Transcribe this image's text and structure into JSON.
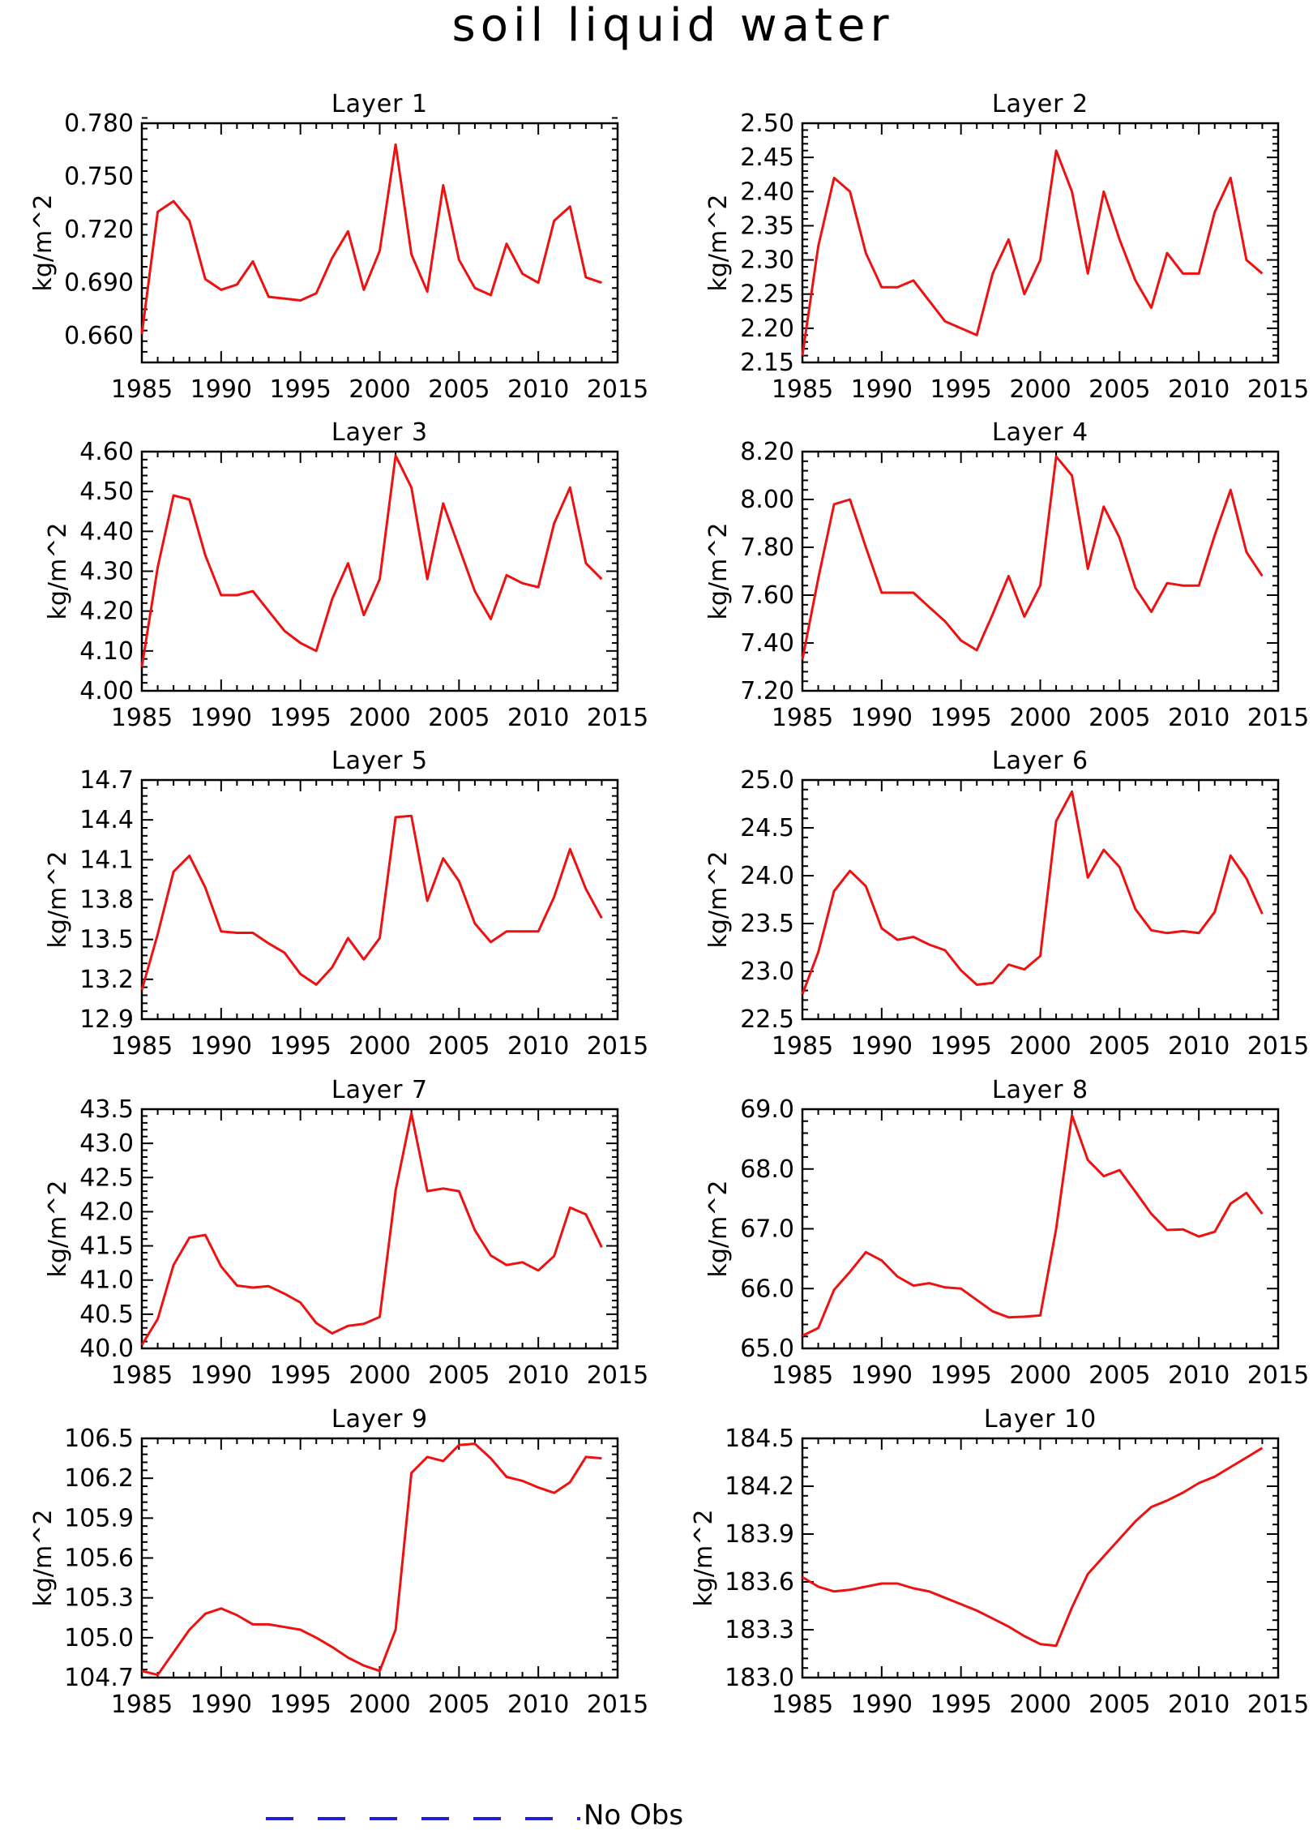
{
  "page": {
    "title": "soil liquid water"
  },
  "legend": {
    "entries": [
      {
        "label": "No Obs",
        "color": "#1f1fd6",
        "style": "dashed"
      }
    ]
  },
  "colors": {
    "series": "#ee1111",
    "axis": "#000000"
  },
  "chart_data": [
    {
      "type": "line",
      "title": "Layer 1",
      "xlabel": "",
      "ylabel": "kg/m^2",
      "xlim": [
        1985,
        2015
      ],
      "ylim": [
        0.645,
        0.78
      ],
      "xticks": [
        "1985",
        "1990",
        "1995",
        "2000",
        "2005",
        "2010",
        "2015"
      ],
      "yticks": [
        "0.660",
        "0.690",
        "0.720",
        "0.750",
        "0.780"
      ],
      "x": [
        1985,
        1986,
        1987,
        1988,
        1989,
        1990,
        1991,
        1992,
        1993,
        1994,
        1995,
        1996,
        1997,
        1998,
        1999,
        2000,
        2001,
        2002,
        2003,
        2004,
        2005,
        2006,
        2007,
        2008,
        2009,
        2010,
        2011,
        2012,
        2013,
        2014
      ],
      "series": [
        {
          "values": [
            0.661,
            0.73,
            0.736,
            0.725,
            0.692,
            0.686,
            0.689,
            0.702,
            0.682,
            0.681,
            0.68,
            0.684,
            0.704,
            0.719,
            0.686,
            0.708,
            0.768,
            0.706,
            0.685,
            0.745,
            0.703,
            0.687,
            0.683,
            0.712,
            0.695,
            0.69,
            0.725,
            0.733,
            0.693,
            0.69
          ]
        }
      ]
    },
    {
      "type": "line",
      "title": "Layer 2",
      "xlabel": "",
      "ylabel": "kg/m^2",
      "xlim": [
        1985,
        2015
      ],
      "ylim": [
        2.15,
        2.5
      ],
      "xticks": [
        "1985",
        "1990",
        "1995",
        "2000",
        "2005",
        "2010",
        "2015"
      ],
      "yticks": [
        "2.15",
        "2.20",
        "2.25",
        "2.30",
        "2.35",
        "2.40",
        "2.45",
        "2.50"
      ],
      "x": [
        1985,
        1986,
        1987,
        1988,
        1989,
        1990,
        1991,
        1992,
        1993,
        1994,
        1995,
        1996,
        1997,
        1998,
        1999,
        2000,
        2001,
        2002,
        2003,
        2004,
        2005,
        2006,
        2007,
        2008,
        2009,
        2010,
        2011,
        2012,
        2013,
        2014
      ],
      "series": [
        {
          "values": [
            2.16,
            2.32,
            2.42,
            2.4,
            2.31,
            2.26,
            2.26,
            2.27,
            2.24,
            2.21,
            2.2,
            2.19,
            2.28,
            2.33,
            2.25,
            2.3,
            2.46,
            2.4,
            2.28,
            2.4,
            2.33,
            2.27,
            2.23,
            2.31,
            2.28,
            2.28,
            2.37,
            2.42,
            2.3,
            2.28
          ]
        }
      ]
    },
    {
      "type": "line",
      "title": "Layer 3",
      "xlabel": "",
      "ylabel": "kg/m^2",
      "xlim": [
        1985,
        2015
      ],
      "ylim": [
        4.0,
        4.6
      ],
      "xticks": [
        "1985",
        "1990",
        "1995",
        "2000",
        "2005",
        "2010",
        "2015"
      ],
      "yticks": [
        "4.00",
        "4.10",
        "4.20",
        "4.30",
        "4.40",
        "4.50",
        "4.60"
      ],
      "x": [
        1985,
        1986,
        1987,
        1988,
        1989,
        1990,
        1991,
        1992,
        1993,
        1994,
        1995,
        1996,
        1997,
        1998,
        1999,
        2000,
        2001,
        2002,
        2003,
        2004,
        2005,
        2006,
        2007,
        2008,
        2009,
        2010,
        2011,
        2012,
        2013,
        2014
      ],
      "series": [
        {
          "values": [
            4.06,
            4.31,
            4.49,
            4.48,
            4.34,
            4.24,
            4.24,
            4.25,
            4.2,
            4.15,
            4.12,
            4.1,
            4.23,
            4.32,
            4.19,
            4.28,
            4.59,
            4.51,
            4.28,
            4.47,
            4.36,
            4.25,
            4.18,
            4.29,
            4.27,
            4.26,
            4.42,
            4.51,
            4.32,
            4.28
          ]
        }
      ]
    },
    {
      "type": "line",
      "title": "Layer 4",
      "xlabel": "",
      "ylabel": "kg/m^2",
      "xlim": [
        1985,
        2015
      ],
      "ylim": [
        7.2,
        8.2
      ],
      "xticks": [
        "1985",
        "1990",
        "1995",
        "2000",
        "2005",
        "2010",
        "2015"
      ],
      "yticks": [
        "7.20",
        "7.40",
        "7.60",
        "7.80",
        "8.00",
        "8.20"
      ],
      "x": [
        1985,
        1986,
        1987,
        1988,
        1989,
        1990,
        1991,
        1992,
        1993,
        1994,
        1995,
        1996,
        1997,
        1998,
        1999,
        2000,
        2001,
        2002,
        2003,
        2004,
        2005,
        2006,
        2007,
        2008,
        2009,
        2010,
        2011,
        2012,
        2013,
        2014
      ],
      "series": [
        {
          "values": [
            7.33,
            7.67,
            7.98,
            8.0,
            7.8,
            7.61,
            7.61,
            7.61,
            7.55,
            7.49,
            7.41,
            7.37,
            7.52,
            7.68,
            7.51,
            7.64,
            8.18,
            8.1,
            7.71,
            7.97,
            7.84,
            7.63,
            7.53,
            7.65,
            7.64,
            7.64,
            7.85,
            8.04,
            7.78,
            7.68
          ]
        }
      ]
    },
    {
      "type": "line",
      "title": "Layer 5",
      "xlabel": "",
      "ylabel": "kg/m^2",
      "xlim": [
        1985,
        2015
      ],
      "ylim": [
        12.9,
        14.7
      ],
      "xticks": [
        "1985",
        "1990",
        "1995",
        "2000",
        "2005",
        "2010",
        "2015"
      ],
      "yticks": [
        "12.9",
        "13.2",
        "13.5",
        "13.8",
        "14.1",
        "14.4",
        "14.7"
      ],
      "x": [
        1985,
        1986,
        1987,
        1988,
        1989,
        1990,
        1991,
        1992,
        1993,
        1994,
        1995,
        1996,
        1997,
        1998,
        1999,
        2000,
        2001,
        2002,
        2003,
        2004,
        2005,
        2006,
        2007,
        2008,
        2009,
        2010,
        2011,
        2012,
        2013,
        2014
      ],
      "series": [
        {
          "values": [
            13.12,
            13.54,
            14.01,
            14.13,
            13.89,
            13.56,
            13.55,
            13.55,
            13.47,
            13.4,
            13.24,
            13.16,
            13.29,
            13.51,
            13.35,
            13.51,
            14.42,
            14.43,
            13.79,
            14.11,
            13.94,
            13.62,
            13.48,
            13.56,
            13.56,
            13.56,
            13.82,
            14.18,
            13.88,
            13.66
          ]
        }
      ]
    },
    {
      "type": "line",
      "title": "Layer 6",
      "xlabel": "",
      "ylabel": "kg/m^2",
      "xlim": [
        1985,
        2015
      ],
      "ylim": [
        22.5,
        25.0
      ],
      "xticks": [
        "1985",
        "1990",
        "1995",
        "2000",
        "2005",
        "2010",
        "2015"
      ],
      "yticks": [
        "22.5",
        "23.0",
        "23.5",
        "24.0",
        "24.5",
        "25.0"
      ],
      "x": [
        1985,
        1986,
        1987,
        1988,
        1989,
        1990,
        1991,
        1992,
        1993,
        1994,
        1995,
        1996,
        1997,
        1998,
        1999,
        2000,
        2001,
        2002,
        2003,
        2004,
        2005,
        2006,
        2007,
        2008,
        2009,
        2010,
        2011,
        2012,
        2013,
        2014
      ],
      "series": [
        {
          "values": [
            22.76,
            23.2,
            23.84,
            24.05,
            23.89,
            23.45,
            23.33,
            23.36,
            23.28,
            23.22,
            23.01,
            22.86,
            22.88,
            23.07,
            23.02,
            23.16,
            24.57,
            24.88,
            23.98,
            24.27,
            24.09,
            23.65,
            23.43,
            23.4,
            23.42,
            23.4,
            23.62,
            24.21,
            23.97,
            23.6
          ]
        }
      ]
    },
    {
      "type": "line",
      "title": "Layer 7",
      "xlabel": "",
      "ylabel": "kg/m^2",
      "xlim": [
        1985,
        2015
      ],
      "ylim": [
        40.0,
        43.5
      ],
      "xticks": [
        "1985",
        "1990",
        "1995",
        "2000",
        "2005",
        "2010",
        "2015"
      ],
      "yticks": [
        "40.0",
        "40.5",
        "41.0",
        "41.5",
        "42.0",
        "42.5",
        "43.0",
        "43.5"
      ],
      "x": [
        1985,
        1986,
        1987,
        1988,
        1989,
        1990,
        1991,
        1992,
        1993,
        1994,
        1995,
        1996,
        1997,
        1998,
        1999,
        2000,
        2001,
        2002,
        2003,
        2004,
        2005,
        2006,
        2007,
        2008,
        2009,
        2010,
        2011,
        2012,
        2013,
        2014
      ],
      "series": [
        {
          "values": [
            40.05,
            40.43,
            41.22,
            41.62,
            41.66,
            41.2,
            40.92,
            40.89,
            40.91,
            40.8,
            40.67,
            40.37,
            40.22,
            40.33,
            40.36,
            40.46,
            42.31,
            43.44,
            42.3,
            42.34,
            42.3,
            41.73,
            41.36,
            41.22,
            41.26,
            41.14,
            41.35,
            42.06,
            41.96,
            41.48
          ]
        }
      ]
    },
    {
      "type": "line",
      "title": "Layer 8",
      "xlabel": "",
      "ylabel": "kg/m^2",
      "xlim": [
        1985,
        2015
      ],
      "ylim": [
        65.0,
        69.0
      ],
      "xticks": [
        "1985",
        "1990",
        "1995",
        "2000",
        "2005",
        "2010",
        "2015"
      ],
      "yticks": [
        "65.0",
        "66.0",
        "67.0",
        "68.0",
        "69.0"
      ],
      "x": [
        1985,
        1986,
        1987,
        1988,
        1989,
        1990,
        1991,
        1992,
        1993,
        1994,
        1995,
        1996,
        1997,
        1998,
        1999,
        2000,
        2001,
        2002,
        2003,
        2004,
        2005,
        2006,
        2007,
        2008,
        2009,
        2010,
        2011,
        2012,
        2013,
        2014
      ],
      "series": [
        {
          "values": [
            65.21,
            65.34,
            65.98,
            66.28,
            66.61,
            66.47,
            66.2,
            66.05,
            66.09,
            66.02,
            66.0,
            65.81,
            65.62,
            65.52,
            65.53,
            65.55,
            67.0,
            68.9,
            68.15,
            67.88,
            67.98,
            67.62,
            67.25,
            66.98,
            66.99,
            66.87,
            66.95,
            67.42,
            67.6,
            67.25
          ]
        }
      ]
    },
    {
      "type": "line",
      "title": "Layer 9",
      "xlabel": "",
      "ylabel": "kg/m^2",
      "xlim": [
        1985,
        2015
      ],
      "ylim": [
        104.7,
        106.5
      ],
      "xticks": [
        "1985",
        "1990",
        "1995",
        "2000",
        "2005",
        "2010",
        "2015"
      ],
      "yticks": [
        "104.7",
        "105.0",
        "105.3",
        "105.6",
        "105.9",
        "106.2",
        "106.5"
      ],
      "x": [
        1985,
        1986,
        1987,
        1988,
        1989,
        1990,
        1991,
        1992,
        1993,
        1994,
        1995,
        1996,
        1997,
        1998,
        1999,
        2000,
        2001,
        2002,
        2003,
        2004,
        2005,
        2006,
        2007,
        2008,
        2009,
        2010,
        2011,
        2012,
        2013,
        2014
      ],
      "series": [
        {
          "values": [
            104.75,
            104.72,
            104.89,
            105.06,
            105.18,
            105.22,
            105.17,
            105.1,
            105.1,
            105.08,
            105.06,
            105.0,
            104.93,
            104.85,
            104.79,
            104.75,
            105.06,
            106.24,
            106.36,
            106.33,
            106.45,
            106.46,
            106.35,
            106.21,
            106.18,
            106.13,
            106.09,
            106.17,
            106.36,
            106.35
          ]
        }
      ]
    },
    {
      "type": "line",
      "title": "Layer 10",
      "xlabel": "",
      "ylabel": "kg/m^2",
      "xlim": [
        1985,
        2015
      ],
      "ylim": [
        183.0,
        184.5
      ],
      "xticks": [
        "1985",
        "1990",
        "1995",
        "2000",
        "2005",
        "2010",
        "2015"
      ],
      "yticks": [
        "183.0",
        "183.3",
        "183.6",
        "183.9",
        "184.2",
        "184.5"
      ],
      "x": [
        1985,
        1986,
        1987,
        1988,
        1989,
        1990,
        1991,
        1992,
        1993,
        1994,
        1995,
        1996,
        1997,
        1998,
        1999,
        2000,
        2001,
        2002,
        2003,
        2004,
        2005,
        2006,
        2007,
        2008,
        2009,
        2010,
        2011,
        2012,
        2013,
        2014
      ],
      "series": [
        {
          "values": [
            183.63,
            183.57,
            183.54,
            183.55,
            183.57,
            183.59,
            183.59,
            183.56,
            183.54,
            183.5,
            183.46,
            183.42,
            183.37,
            183.32,
            183.26,
            183.21,
            183.2,
            183.44,
            183.65,
            183.76,
            183.87,
            183.98,
            184.07,
            184.11,
            184.16,
            184.22,
            184.26,
            184.32,
            184.38,
            184.44
          ]
        }
      ]
    }
  ]
}
